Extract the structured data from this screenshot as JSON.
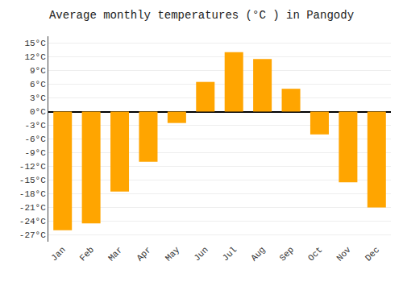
{
  "chart_data": {
    "type": "bar",
    "title": "Average monthly temperatures (°C ) in Pangody",
    "categories": [
      "Jan",
      "Feb",
      "Mar",
      "Apr",
      "May",
      "Jun",
      "Jul",
      "Aug",
      "Sep",
      "Oct",
      "Nov",
      "Dec"
    ],
    "values": [
      -26.0,
      -24.5,
      -17.5,
      -11.0,
      -2.5,
      6.5,
      13.0,
      11.5,
      5.0,
      -5.0,
      -15.5,
      -21.0
    ],
    "color": "#FFA500",
    "ylim": [
      -28.5,
      16.5
    ],
    "yticks": [
      {
        "value": -27,
        "label": "-27°C"
      },
      {
        "value": -24,
        "label": "-24°C"
      },
      {
        "value": -21,
        "label": "-21°C"
      },
      {
        "value": -18,
        "label": "-18°C"
      },
      {
        "value": -15,
        "label": "-15°C"
      },
      {
        "value": -12,
        "label": "-12°C"
      },
      {
        "value": -9,
        "label": "-9°C"
      },
      {
        "value": -6,
        "label": "-6°C"
      },
      {
        "value": -3,
        "label": "-3°C"
      },
      {
        "value": 0,
        "label": "0°C"
      },
      {
        "value": 3,
        "label": "3°C"
      },
      {
        "value": 6,
        "label": "6°C"
      },
      {
        "value": 9,
        "label": "9°C"
      },
      {
        "value": 12,
        "label": "12°C"
      },
      {
        "value": 15,
        "label": "15°C"
      }
    ],
    "grid": true
  }
}
